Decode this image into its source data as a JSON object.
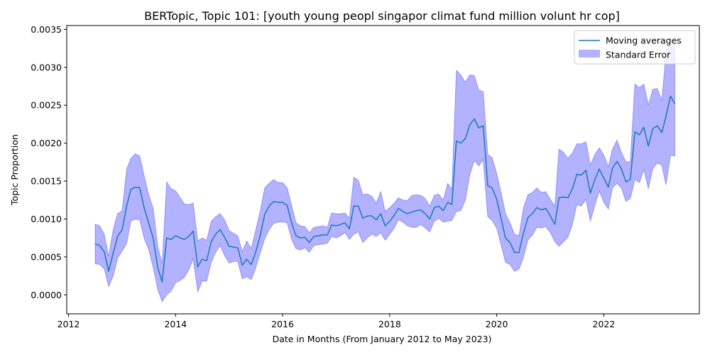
{
  "chart_data": {
    "type": "line",
    "title": "BERTopic, Topic 101: [youth young peopl singapor climat fund million volunt hr cop]",
    "xlabel": "Date in Months (From January 2012 to May 2023)",
    "ylabel": "Topic Proportion",
    "xlim": [
      "2011-12-20",
      "2023-10-15"
    ],
    "ylim": [
      -0.00025,
      0.00355
    ],
    "x_ticks": [
      "2012",
      "2014",
      "2016",
      "2018",
      "2020",
      "2022"
    ],
    "y_ticks": [
      "0.0000",
      "0.0005",
      "0.0010",
      "0.0015",
      "0.0020",
      "0.0025",
      "0.0030",
      "0.0035"
    ],
    "grid": false,
    "legend_position": "top-right",
    "colors": {
      "line": "#1f77b4",
      "band": "#0000ff",
      "band_opacity": 0.3
    },
    "series": [
      {
        "name": "Moving averages",
        "dates": [
          "2012-07",
          "2012-08",
          "2012-09",
          "2012-10",
          "2012-11",
          "2012-12",
          "2013-01",
          "2013-02",
          "2013-03",
          "2013-04",
          "2013-05",
          "2013-06",
          "2013-07",
          "2013-08",
          "2013-09",
          "2013-10",
          "2013-11",
          "2013-12",
          "2014-01",
          "2014-02",
          "2014-03",
          "2014-04",
          "2014-05",
          "2014-06",
          "2014-07",
          "2014-08",
          "2014-09",
          "2014-10",
          "2014-11",
          "2014-12",
          "2015-01",
          "2015-02",
          "2015-03",
          "2015-04",
          "2015-05",
          "2015-06",
          "2015-07",
          "2015-08",
          "2015-09",
          "2015-10",
          "2015-11",
          "2015-12",
          "2016-01",
          "2016-02",
          "2016-03",
          "2016-04",
          "2016-05",
          "2016-06",
          "2016-07",
          "2016-08",
          "2016-09",
          "2016-10",
          "2016-11",
          "2016-12",
          "2017-01",
          "2017-02",
          "2017-03",
          "2017-04",
          "2017-05",
          "2017-06",
          "2017-07",
          "2017-08",
          "2017-09",
          "2017-10",
          "2017-11",
          "2017-12",
          "2018-01",
          "2018-02",
          "2018-03",
          "2018-04",
          "2018-05",
          "2018-06",
          "2018-07",
          "2018-08",
          "2018-09",
          "2018-10",
          "2018-11",
          "2018-12",
          "2019-01",
          "2019-02",
          "2019-03",
          "2019-04",
          "2019-05",
          "2019-06",
          "2019-07",
          "2019-08",
          "2019-09",
          "2019-10",
          "2019-11",
          "2019-12",
          "2020-01",
          "2020-02",
          "2020-03",
          "2020-04",
          "2020-05",
          "2020-06",
          "2020-07",
          "2020-08",
          "2020-09",
          "2020-10",
          "2020-11",
          "2020-12",
          "2021-01",
          "2021-02",
          "2021-03",
          "2021-04",
          "2021-05",
          "2021-06",
          "2021-07",
          "2021-08",
          "2021-09",
          "2021-10",
          "2021-11",
          "2021-12",
          "2022-01",
          "2022-02",
          "2022-03",
          "2022-04",
          "2022-05",
          "2022-06",
          "2022-07",
          "2022-08",
          "2022-09",
          "2022-10",
          "2022-11",
          "2022-12",
          "2023-01",
          "2023-02",
          "2023-03",
          "2023-04",
          "2023-05"
        ],
        "values": [
          0.00067,
          0.00065,
          0.00057,
          0.00031,
          0.00055,
          0.00077,
          0.00086,
          0.00117,
          0.00139,
          0.00142,
          0.00141,
          0.00114,
          0.00095,
          0.00075,
          0.00036,
          0.00017,
          0.00075,
          0.00073,
          0.00078,
          0.00075,
          0.00073,
          0.00077,
          0.00084,
          0.00037,
          0.00047,
          0.00045,
          0.0007,
          0.0008,
          0.00086,
          0.00076,
          0.00064,
          0.00063,
          0.00062,
          0.00039,
          0.00047,
          0.0004,
          0.00056,
          0.00078,
          0.00106,
          0.00117,
          0.00123,
          0.00122,
          0.00122,
          0.00118,
          0.00096,
          0.00078,
          0.00075,
          0.00076,
          0.00069,
          0.00077,
          0.00078,
          0.00079,
          0.00079,
          0.00092,
          0.00091,
          0.00093,
          0.00095,
          0.00087,
          0.00117,
          0.00117,
          0.00101,
          0.00104,
          0.00104,
          0.00099,
          0.00107,
          0.00091,
          0.00097,
          0.00105,
          0.00114,
          0.0011,
          0.00107,
          0.00109,
          0.00111,
          0.00112,
          0.00107,
          0.001,
          0.00115,
          0.00117,
          0.00111,
          0.00122,
          0.00119,
          0.00203,
          0.002,
          0.00206,
          0.00224,
          0.00232,
          0.0022,
          0.00223,
          0.00144,
          0.00141,
          0.00126,
          0.001,
          0.00075,
          0.00069,
          0.00056,
          0.00056,
          0.00081,
          0.00102,
          0.00107,
          0.00115,
          0.00112,
          0.00114,
          0.00104,
          0.00093,
          0.00128,
          0.00129,
          0.00128,
          0.0014,
          0.00159,
          0.00158,
          0.00164,
          0.00134,
          0.00152,
          0.00166,
          0.00154,
          0.00142,
          0.00167,
          0.00176,
          0.00166,
          0.00149,
          0.00152,
          0.00215,
          0.00211,
          0.00221,
          0.00196,
          0.00219,
          0.00223,
          0.00214,
          0.00235,
          0.00262,
          0.00252
        ]
      },
      {
        "name": "Standard Error",
        "upper": [
          0.00093,
          0.00091,
          0.0008,
          0.00051,
          0.00086,
          0.00107,
          0.00111,
          0.00166,
          0.0018,
          0.00186,
          0.00183,
          0.00156,
          0.00132,
          0.00114,
          0.00064,
          0.00041,
          0.00149,
          0.0014,
          0.00137,
          0.00128,
          0.0012,
          0.00119,
          0.00121,
          0.00071,
          0.00075,
          0.00072,
          0.00097,
          0.00103,
          0.00107,
          0.00099,
          0.00085,
          0.00081,
          0.00078,
          0.00057,
          0.00071,
          0.00061,
          0.00085,
          0.0011,
          0.00141,
          0.00147,
          0.00152,
          0.00148,
          0.00148,
          0.00141,
          0.00119,
          0.00095,
          0.00091,
          0.0009,
          0.00082,
          0.00089,
          0.0009,
          0.00091,
          0.00089,
          0.00108,
          0.00107,
          0.00107,
          0.00108,
          0.00101,
          0.00155,
          0.00151,
          0.00132,
          0.00133,
          0.0013,
          0.00121,
          0.00136,
          0.0011,
          0.00115,
          0.00121,
          0.00128,
          0.00125,
          0.00124,
          0.00131,
          0.00132,
          0.00131,
          0.00127,
          0.00117,
          0.00131,
          0.00133,
          0.00125,
          0.00147,
          0.00139,
          0.00296,
          0.0029,
          0.0028,
          0.0029,
          0.00289,
          0.0027,
          0.00268,
          0.00185,
          0.00181,
          0.0016,
          0.00134,
          0.00107,
          0.00095,
          0.0008,
          0.00078,
          0.00114,
          0.00132,
          0.00135,
          0.00141,
          0.00135,
          0.00136,
          0.00126,
          0.00117,
          0.00192,
          0.00188,
          0.0018,
          0.00187,
          0.00199,
          0.00199,
          0.00202,
          0.00171,
          0.00185,
          0.00194,
          0.00184,
          0.00169,
          0.00192,
          0.00204,
          0.00188,
          0.00175,
          0.00176,
          0.00278,
          0.00273,
          0.00278,
          0.0025,
          0.00271,
          0.00272,
          0.00256,
          0.00319,
          0.0033,
          0.0033
        ],
        "lower": [
          0.00041,
          0.0004,
          0.00034,
          0.00011,
          0.00025,
          0.00048,
          0.00058,
          0.00068,
          0.00097,
          0.001,
          0.00099,
          0.00074,
          0.0006,
          0.00036,
          7e-05,
          -9e-05,
          0.0,
          5e-05,
          0.00016,
          0.00019,
          0.00023,
          0.00033,
          0.00047,
          4e-05,
          0.00018,
          0.00018,
          0.00043,
          0.00056,
          0.00065,
          0.00052,
          0.00042,
          0.00044,
          0.00044,
          0.00021,
          0.00024,
          0.0002,
          0.00035,
          0.00055,
          0.00074,
          0.00086,
          0.00094,
          0.00096,
          0.00096,
          0.00095,
          0.00074,
          0.00061,
          0.00059,
          0.00062,
          0.00056,
          0.00065,
          0.00066,
          0.00067,
          0.00068,
          0.00077,
          0.00075,
          0.00078,
          0.00082,
          0.00073,
          0.0008,
          0.00083,
          0.00069,
          0.00075,
          0.0008,
          0.00077,
          0.00082,
          0.00072,
          0.0008,
          0.00088,
          0.00099,
          0.00096,
          0.00091,
          0.00089,
          0.00089,
          0.00093,
          0.00088,
          0.00083,
          0.00097,
          0.00101,
          0.00096,
          0.00097,
          0.00098,
          0.0011,
          0.00111,
          0.00125,
          0.00158,
          0.00177,
          0.0017,
          0.00178,
          0.00103,
          0.00098,
          0.00088,
          0.00065,
          0.00043,
          0.0004,
          0.00031,
          0.00034,
          0.00049,
          0.00072,
          0.00079,
          0.00089,
          0.00088,
          0.0009,
          0.00082,
          0.0007,
          0.00064,
          0.0007,
          0.00076,
          0.00093,
          0.00119,
          0.00117,
          0.00126,
          0.00097,
          0.00118,
          0.00137,
          0.00122,
          0.00113,
          0.00141,
          0.00147,
          0.00141,
          0.00123,
          0.00127,
          0.00152,
          0.00148,
          0.00165,
          0.0014,
          0.00166,
          0.00174,
          0.00171,
          0.00145,
          0.00184,
          0.00183
        ]
      }
    ]
  }
}
